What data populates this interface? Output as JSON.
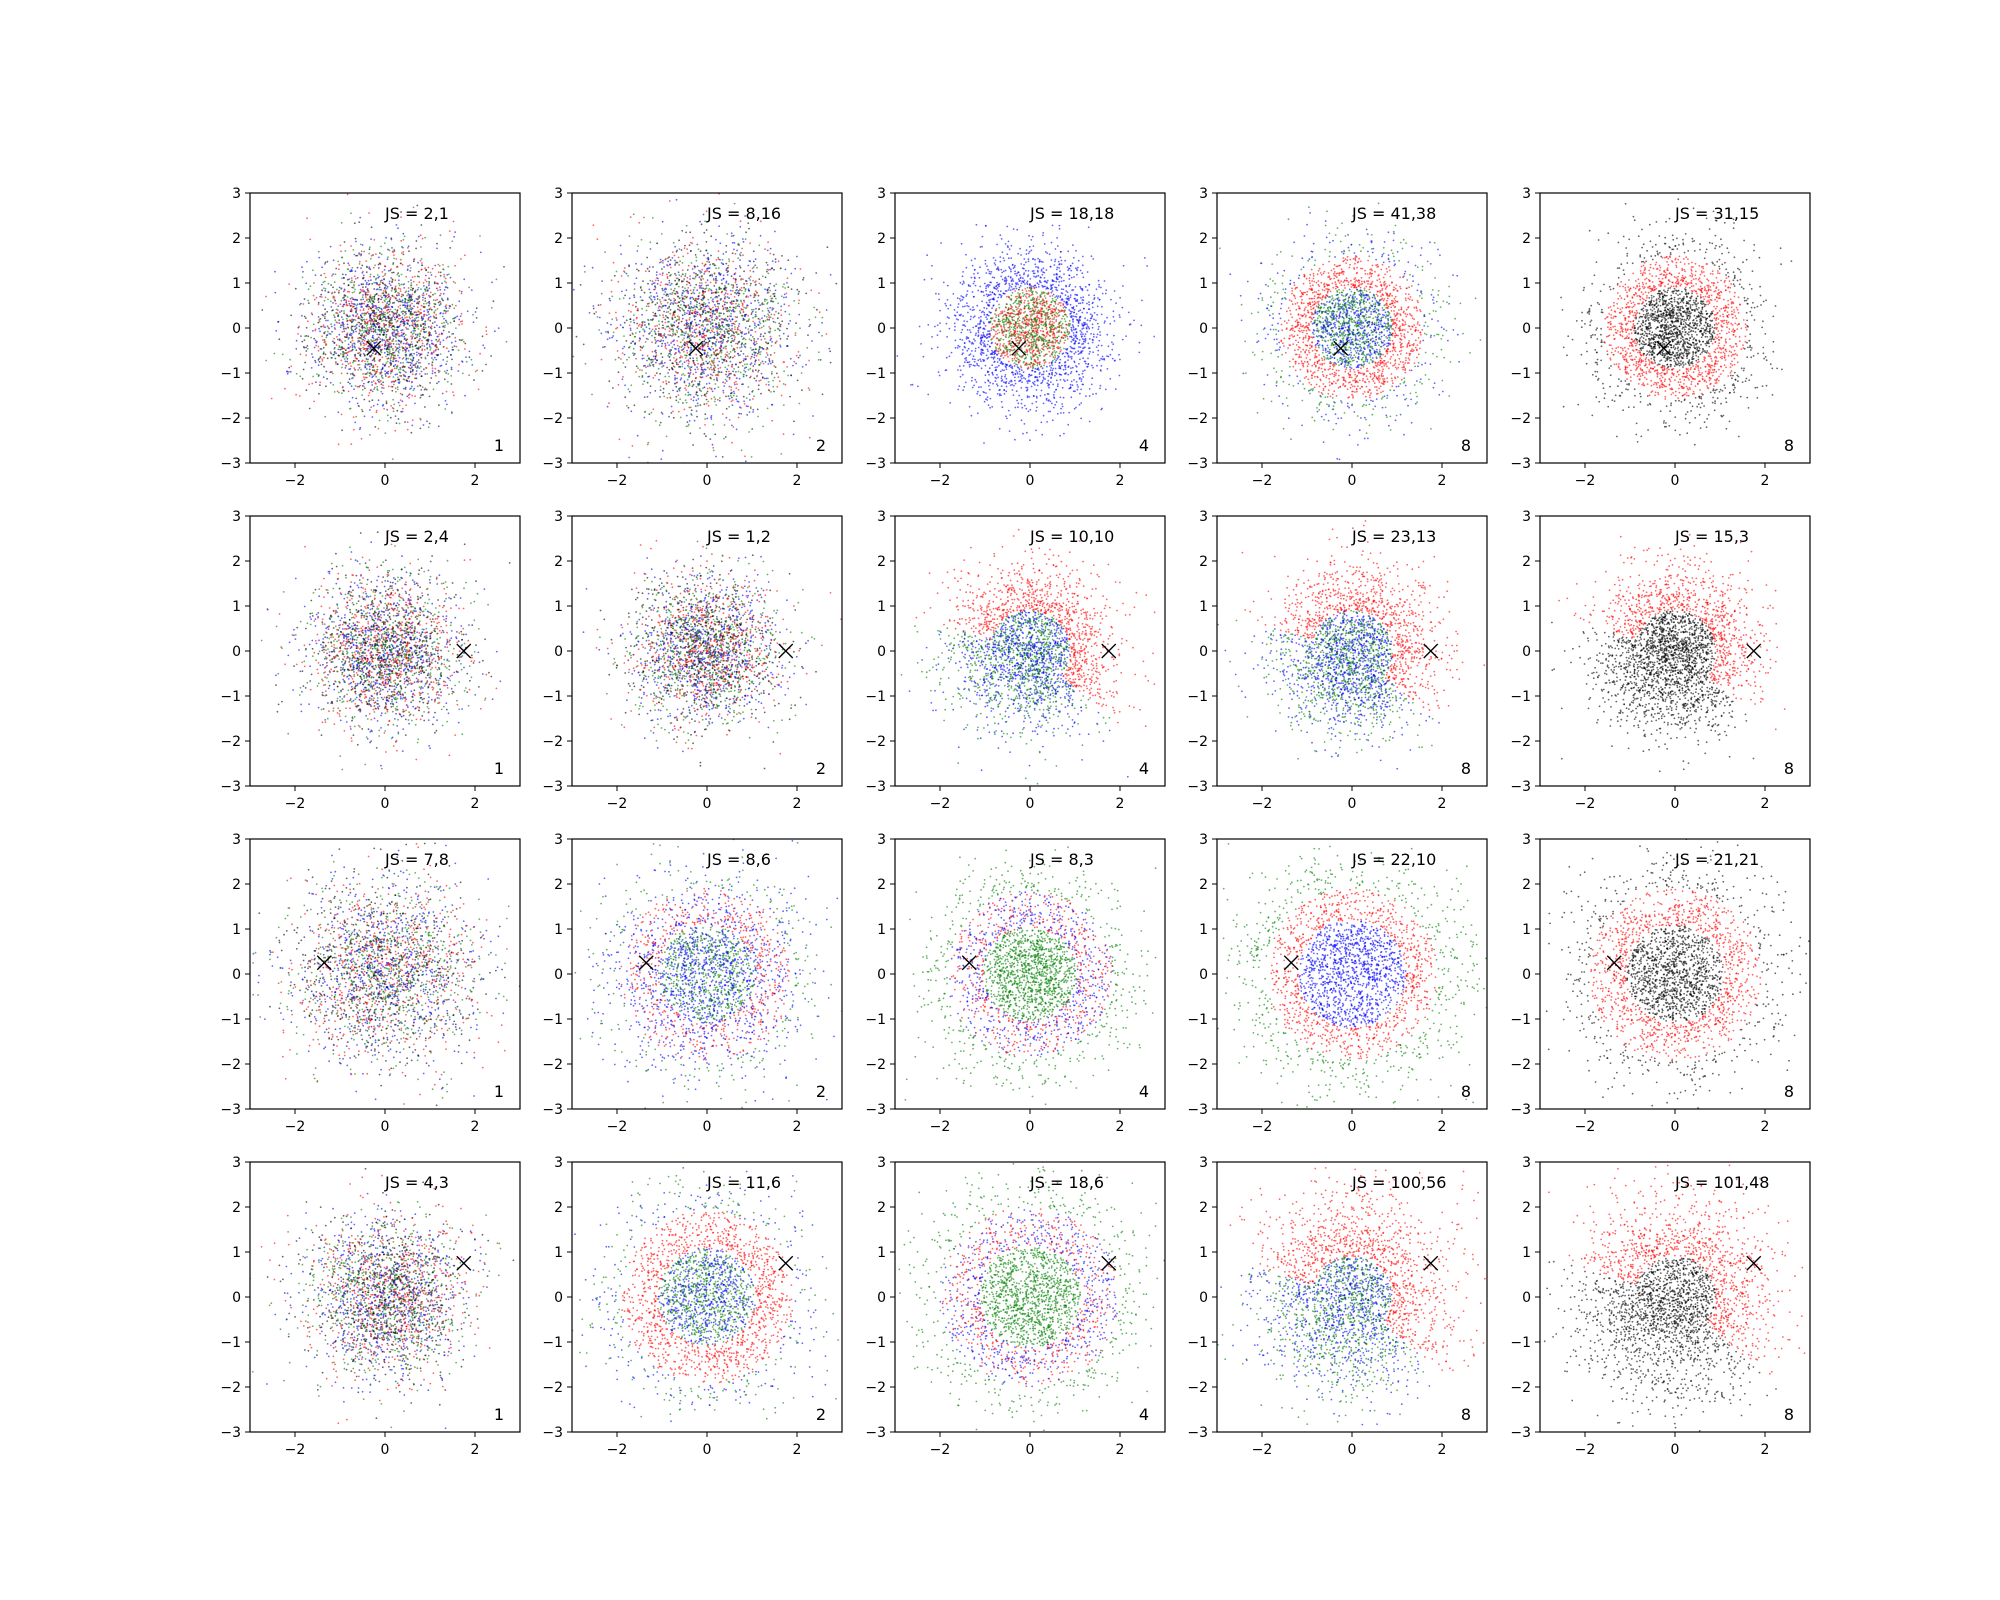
{
  "figure": {
    "rows": 4,
    "cols": 5,
    "xlim": [
      -3,
      3
    ],
    "ylim": [
      -3,
      3
    ],
    "xticks": [
      -2,
      0,
      2
    ],
    "yticks": [
      -3,
      -2,
      -1,
      0,
      1,
      2,
      3
    ],
    "colors": {
      "red": "#ff0000",
      "green": "#008000",
      "blue": "#0000ff",
      "black": "#000000"
    }
  },
  "chart_data": [
    {
      "type": "scatter",
      "row": 1,
      "col": 1,
      "title": "JS = 2,1",
      "corner_label": "1",
      "marker_x": [
        -0.25,
        -0.45
      ],
      "pattern": "uniform",
      "palette": [
        "red",
        "green",
        "blue",
        "black"
      ],
      "spread": 1.0
    },
    {
      "type": "scatter",
      "row": 1,
      "col": 2,
      "title": "JS = 8,16",
      "corner_label": "2",
      "marker_x": [
        -0.25,
        -0.45
      ],
      "pattern": "uniform",
      "palette": [
        "red",
        "green",
        "blue",
        "black"
      ],
      "spread": 1.15
    },
    {
      "type": "scatter",
      "row": 1,
      "col": 3,
      "title": "JS = 18,18",
      "corner_label": "4",
      "marker_x": [
        -0.25,
        -0.45
      ],
      "pattern": "core",
      "core_colors": [
        "green",
        "red"
      ],
      "ring_colors": [
        "blue"
      ],
      "palette": [
        "red",
        "green",
        "blue",
        "black"
      ],
      "spread": 0.95
    },
    {
      "type": "scatter",
      "row": 1,
      "col": 4,
      "title": "JS = 41,38",
      "corner_label": "8",
      "marker_x": [
        -0.25,
        -0.45
      ],
      "pattern": "ring",
      "ring_colors": [
        "red"
      ],
      "outer_colors": [
        "blue",
        "green"
      ],
      "palette": [
        "red",
        "green",
        "blue",
        "black"
      ],
      "spread": 1.0
    },
    {
      "type": "scatter",
      "row": 1,
      "col": 5,
      "title": "JS = 31,15",
      "corner_label": "8",
      "marker_x": [
        -0.25,
        -0.45
      ],
      "pattern": "ring",
      "ring_colors": [
        "red"
      ],
      "outer_colors": [
        "black"
      ],
      "palette": [
        "red",
        "black"
      ],
      "spread": 1.0
    },
    {
      "type": "scatter",
      "row": 2,
      "col": 1,
      "title": "JS = 2,4",
      "corner_label": "1",
      "marker_x": [
        1.75,
        0.0
      ],
      "pattern": "uniform",
      "palette": [
        "red",
        "green",
        "blue",
        "black"
      ],
      "spread": 1.0
    },
    {
      "type": "scatter",
      "row": 2,
      "col": 2,
      "title": "JS = 1,2",
      "corner_label": "2",
      "marker_x": [
        1.75,
        0.0
      ],
      "pattern": "uniform",
      "palette": [
        "red",
        "green",
        "blue",
        "black"
      ],
      "spread": 0.95
    },
    {
      "type": "scatter",
      "row": 2,
      "col": 3,
      "title": "JS = 10,10",
      "corner_label": "4",
      "marker_x": [
        1.75,
        0.0
      ],
      "pattern": "arc",
      "arc_colors": [
        "red"
      ],
      "core_colors": [
        "blue",
        "green"
      ],
      "palette": [
        "red",
        "green",
        "blue",
        "black"
      ],
      "spread": 1.0
    },
    {
      "type": "scatter",
      "row": 2,
      "col": 4,
      "title": "JS = 23,13",
      "corner_label": "8",
      "marker_x": [
        1.75,
        0.0
      ],
      "pattern": "arc",
      "arc_colors": [
        "red"
      ],
      "core_colors": [
        "green",
        "blue"
      ],
      "palette": [
        "red",
        "green",
        "blue"
      ],
      "spread": 1.0
    },
    {
      "type": "scatter",
      "row": 2,
      "col": 5,
      "title": "JS = 15,3",
      "corner_label": "8",
      "marker_x": [
        1.75,
        0.0
      ],
      "pattern": "arc",
      "arc_colors": [
        "red"
      ],
      "core_colors": [
        "black"
      ],
      "palette": [
        "red",
        "black"
      ],
      "spread": 1.0
    },
    {
      "type": "scatter",
      "row": 3,
      "col": 1,
      "title": "JS = 7,8",
      "corner_label": "1",
      "marker_x": [
        -1.35,
        0.25
      ],
      "pattern": "uniform",
      "palette": [
        "red",
        "green",
        "blue",
        "black"
      ],
      "spread": 1.2
    },
    {
      "type": "scatter",
      "row": 3,
      "col": 2,
      "title": "JS = 8,6",
      "corner_label": "2",
      "marker_x": [
        -1.35,
        0.25
      ],
      "pattern": "ring",
      "ring_colors": [
        "red",
        "blue"
      ],
      "outer_colors": [
        "green",
        "blue"
      ],
      "palette": [
        "red",
        "green",
        "blue",
        "black"
      ],
      "spread": 1.2
    },
    {
      "type": "scatter",
      "row": 3,
      "col": 3,
      "title": "JS = 8,3",
      "corner_label": "4",
      "marker_x": [
        -1.35,
        0.25
      ],
      "pattern": "ring",
      "ring_colors": [
        "red",
        "blue"
      ],
      "outer_colors": [
        "green"
      ],
      "palette": [
        "red",
        "green",
        "blue"
      ],
      "spread": 1.15
    },
    {
      "type": "scatter",
      "row": 3,
      "col": 4,
      "title": "JS = 22,10",
      "corner_label": "8",
      "marker_x": [
        -1.35,
        0.25
      ],
      "pattern": "ring3",
      "ring_colors": [
        "red"
      ],
      "outer_colors": [
        "blue"
      ],
      "far_colors": [
        "green"
      ],
      "palette": [
        "red",
        "green",
        "blue"
      ],
      "spread": 1.3
    },
    {
      "type": "scatter",
      "row": 3,
      "col": 5,
      "title": "JS = 21,21",
      "corner_label": "8",
      "marker_x": [
        -1.35,
        0.25
      ],
      "pattern": "ring",
      "ring_colors": [
        "red"
      ],
      "outer_colors": [
        "black"
      ],
      "palette": [
        "red",
        "black"
      ],
      "spread": 1.2
    },
    {
      "type": "scatter",
      "row": 4,
      "col": 1,
      "title": "JS = 4,3",
      "corner_label": "1",
      "marker_x": [
        1.75,
        0.75
      ],
      "pattern": "uniform",
      "palette": [
        "red",
        "green",
        "blue",
        "black"
      ],
      "spread": 1.05
    },
    {
      "type": "scatter",
      "row": 4,
      "col": 2,
      "title": "JS = 11,6",
      "corner_label": "2",
      "marker_x": [
        1.75,
        0.75
      ],
      "pattern": "ring",
      "ring_colors": [
        "red"
      ],
      "outer_colors": [
        "blue",
        "green"
      ],
      "palette": [
        "red",
        "green",
        "blue",
        "black"
      ],
      "spread": 1.2
    },
    {
      "type": "scatter",
      "row": 4,
      "col": 3,
      "title": "JS = 18,6",
      "corner_label": "4",
      "marker_x": [
        1.75,
        0.75
      ],
      "pattern": "ring",
      "ring_colors": [
        "red",
        "blue"
      ],
      "outer_colors": [
        "green"
      ],
      "palette": [
        "red",
        "green",
        "blue"
      ],
      "spread": 1.25
    },
    {
      "type": "scatter",
      "row": 4,
      "col": 4,
      "title": "JS = 100,56",
      "corner_label": "8",
      "marker_x": [
        1.75,
        0.75
      ],
      "pattern": "arc",
      "arc_colors": [
        "red"
      ],
      "core_colors": [
        "blue",
        "green"
      ],
      "palette": [
        "red",
        "green",
        "blue"
      ],
      "spread": 1.2
    },
    {
      "type": "scatter",
      "row": 4,
      "col": 5,
      "title": "JS = 101,48",
      "corner_label": "8",
      "marker_x": [
        1.75,
        0.75
      ],
      "pattern": "arc",
      "arc_colors": [
        "red"
      ],
      "core_colors": [
        "black"
      ],
      "palette": [
        "red",
        "black"
      ],
      "spread": 1.2
    }
  ]
}
